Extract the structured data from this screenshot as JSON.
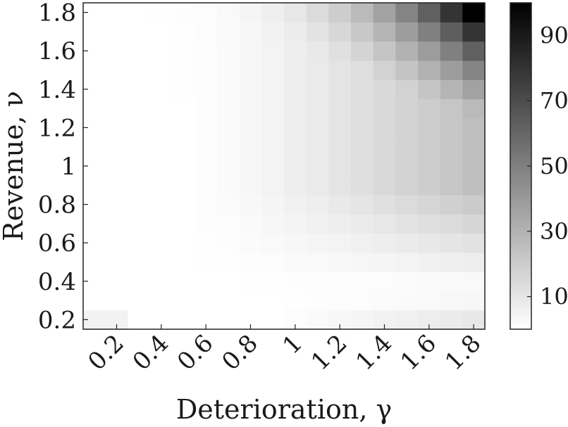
{
  "chart_data": {
    "type": "heatmap",
    "xlabel": "Deterioration, γ",
    "ylabel": "Revenue, ν",
    "x_ticks": [
      "0.2",
      "0.4",
      "0.6",
      "0.8",
      "1",
      "1.2",
      "1.4",
      "1.6",
      "1.8"
    ],
    "y_ticks": [
      "0.2",
      "0.4",
      "0.6",
      "0.8",
      "1",
      "1.2",
      "1.4",
      "1.6",
      "1.8"
    ],
    "x": [
      0.1,
      0.2,
      0.3,
      0.4,
      0.5,
      0.6,
      0.7,
      0.8,
      0.9,
      1.0,
      1.1,
      1.2,
      1.3,
      1.4,
      1.5,
      1.6,
      1.7,
      1.8
    ],
    "y": [
      0.2,
      0.3,
      0.4,
      0.5,
      0.6,
      0.7,
      0.8,
      0.9,
      1.0,
      1.1,
      1.2,
      1.3,
      1.4,
      1.5,
      1.6,
      1.7,
      1.8
    ],
    "xlim": [
      0.05,
      1.85
    ],
    "ylim": [
      0.15,
      1.85
    ],
    "colorbar": {
      "ticks": [
        10,
        30,
        50,
        70,
        90
      ],
      "range": [
        0,
        100
      ],
      "colormap": "white-to-black"
    },
    "grid": false
  }
}
